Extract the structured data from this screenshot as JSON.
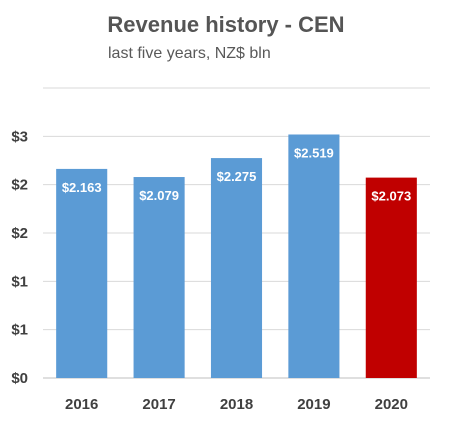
{
  "chart_data": {
    "type": "bar",
    "title": "Revenue history - CEN",
    "subtitle": "last five years, NZ$ bln",
    "xlabel": "",
    "ylabel": "",
    "categories": [
      "2016",
      "2017",
      "2018",
      "2019",
      "2020"
    ],
    "values": [
      2.163,
      2.079,
      2.275,
      2.519,
      2.073
    ],
    "data_labels": [
      "$2.163",
      "$2.079",
      "$2.275",
      "$2.519",
      "$2.073"
    ],
    "ylim": [
      0,
      3
    ],
    "y_ticks": [
      0,
      0.5,
      1,
      1.5,
      2,
      2.5,
      3
    ],
    "y_tick_labels": [
      "$0",
      "$1",
      "$1",
      "$2",
      "$2",
      "$3"
    ],
    "y_tick_label_values": [
      0,
      0.5,
      1,
      1.5,
      2,
      2.5
    ],
    "grid": true,
    "legend": "none",
    "colors": {
      "default_bar": "#5b9bd5",
      "highlight_bar": "#c00000",
      "grid": "#d9d9d9",
      "axis": "#bfbfbf"
    },
    "highlight_index": 4
  }
}
